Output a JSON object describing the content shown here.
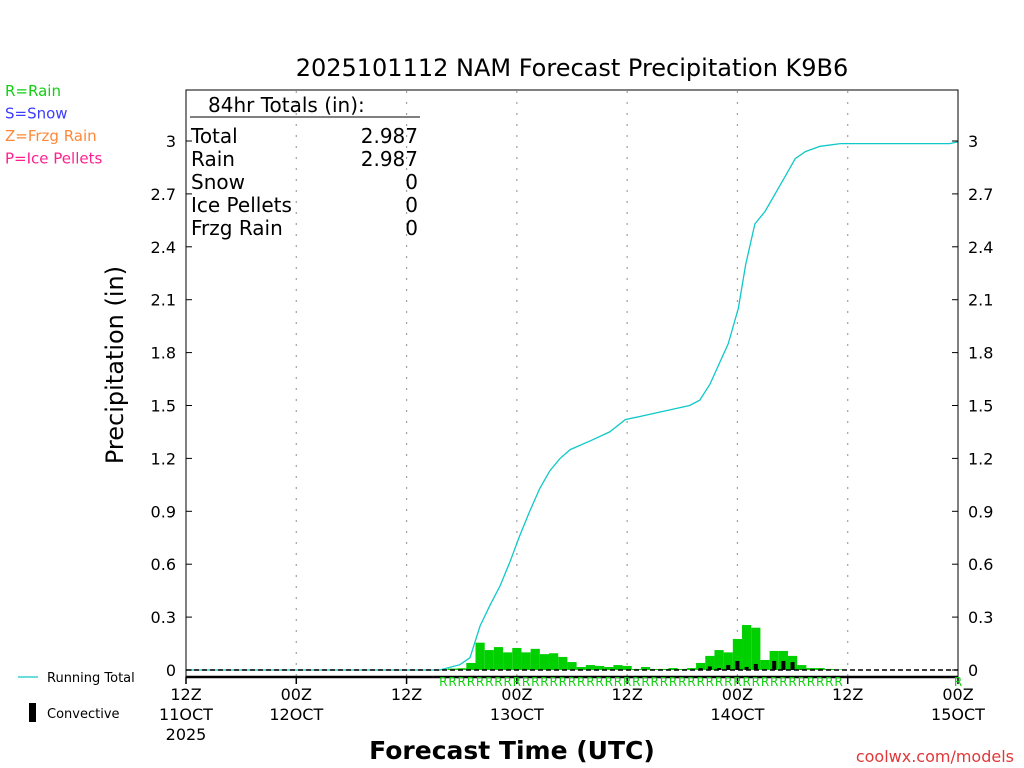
{
  "chart_data": {
    "type": "bar",
    "title": "2025101112 NAM Forecast Precipitation K9B6",
    "xlabel": "Forecast Time (UTC)",
    "ylabel": "Precipitation (in)",
    "xlim_hours": [
      0,
      84
    ],
    "ylim": [
      0,
      3.2
    ],
    "yticks": [
      "0",
      "0.3",
      "0.6",
      "0.9",
      "1.2",
      "1.5",
      "1.8",
      "2.1",
      "2.4",
      "2.7",
      "3"
    ],
    "ytick_values": [
      0,
      0.3,
      0.6,
      0.9,
      1.2,
      1.5,
      1.8,
      2.1,
      2.4,
      2.7,
      3
    ],
    "xticks": [
      {
        "hour": 0,
        "lines": [
          "12Z",
          "11OCT",
          "2025"
        ]
      },
      {
        "hour": 12,
        "lines": [
          "00Z",
          "12OCT"
        ]
      },
      {
        "hour": 24,
        "lines": [
          "12Z"
        ]
      },
      {
        "hour": 36,
        "lines": [
          "00Z",
          "13OCT"
        ]
      },
      {
        "hour": 48,
        "lines": [
          "12Z"
        ]
      },
      {
        "hour": 60,
        "lines": [
          "00Z",
          "14OCT"
        ]
      },
      {
        "hour": 72,
        "lines": [
          "12Z"
        ]
      },
      {
        "hour": 84,
        "lines": [
          "00Z",
          "15OCT"
        ]
      }
    ],
    "grid_hours": [
      12,
      24,
      36,
      48,
      60,
      72
    ],
    "hourly_total": {
      "hours": [
        28,
        29,
        30,
        31,
        32,
        33,
        34,
        35,
        36,
        37,
        38,
        39,
        40,
        41,
        42,
        43,
        44,
        45,
        46,
        47,
        48,
        49,
        50,
        51,
        52,
        53,
        54,
        55,
        56,
        57,
        58,
        59,
        60,
        61,
        62,
        63,
        64,
        65,
        66,
        67,
        68,
        69,
        70,
        71
      ],
      "values": [
        0.004,
        0.008,
        0.01,
        0.04,
        0.155,
        0.113,
        0.13,
        0.1,
        0.125,
        0.1,
        0.12,
        0.09,
        0.095,
        0.074,
        0.045,
        0.017,
        0.028,
        0.023,
        0.017,
        0.028,
        0.023,
        0.006,
        0.017,
        0.006,
        0.006,
        0.011,
        0.006,
        0.011,
        0.04,
        0.08,
        0.113,
        0.1,
        0.176,
        0.255,
        0.24,
        0.057,
        0.108,
        0.108,
        0.08,
        0.028,
        0.011,
        0.011,
        0.006,
        0.003
      ]
    },
    "hourly_convective": {
      "hours": [
        56,
        57,
        58,
        59,
        60,
        61,
        62,
        63,
        64,
        65,
        66,
        67
      ],
      "values": [
        0.011,
        0.02,
        0.011,
        0.028,
        0.051,
        0.017,
        0.034,
        0.003,
        0.051,
        0.051,
        0.045,
        0.003
      ]
    },
    "running_total": {
      "hours": [
        0,
        27.6,
        29.8,
        30.9,
        32,
        33.1,
        34.2,
        35.3,
        36.3,
        37.4,
        38.5,
        39.6,
        40.7,
        41.8,
        44,
        46.1,
        47.8,
        50.5,
        54.8,
        55.9,
        57,
        59,
        60.1,
        60.9,
        61.9,
        63,
        65.2,
        66.3,
        67.4,
        69,
        71.2,
        83.1,
        84
      ],
      "values": [
        0,
        0,
        0.03,
        0.07,
        0.25,
        0.37,
        0.48,
        0.62,
        0.76,
        0.9,
        1.03,
        1.13,
        1.2,
        1.25,
        1.3,
        1.35,
        1.42,
        1.45,
        1.5,
        1.53,
        1.62,
        1.85,
        2.05,
        2.3,
        2.53,
        2.6,
        2.8,
        2.9,
        2.94,
        2.97,
        2.985,
        2.985,
        2.995
      ]
    },
    "precip_type_marker": "R",
    "precip_type_hours": [
      28,
      29,
      30,
      31,
      32,
      33,
      34,
      35,
      36,
      37,
      38,
      39,
      40,
      41,
      42,
      43,
      44,
      45,
      46,
      47,
      48,
      49,
      50,
      51,
      52,
      53,
      54,
      55,
      56,
      57,
      58,
      59,
      60,
      61,
      62,
      63,
      64,
      65,
      66,
      67,
      68,
      69,
      70,
      71,
      84
    ],
    "colors": {
      "precip": "#00d000",
      "convective": "#000000",
      "running_total": "#10c8c8",
      "grid": "#a0a0a0"
    }
  },
  "totals": {
    "header": "84hr Totals (in):",
    "rows": [
      {
        "label": "Total",
        "value": "2.987"
      },
      {
        "label": "Rain",
        "value": "2.987"
      },
      {
        "label": "Snow",
        "value": "0"
      },
      {
        "label": "Ice Pellets",
        "value": "0"
      },
      {
        "label": "Frzg Rain",
        "value": "0"
      }
    ]
  },
  "type_legend": [
    {
      "text": "R=Rain",
      "color": "#10d010"
    },
    {
      "text": "S=Snow",
      "color": "#3c3cff"
    },
    {
      "text": "Z=Frzg Rain",
      "color": "#ff8838"
    },
    {
      "text": "P=Ice Pellets",
      "color": "#ff2090"
    }
  ],
  "series_legend": {
    "running_total": "Running Total",
    "convective": "Convective"
  },
  "credit": "coolwx.com/models"
}
